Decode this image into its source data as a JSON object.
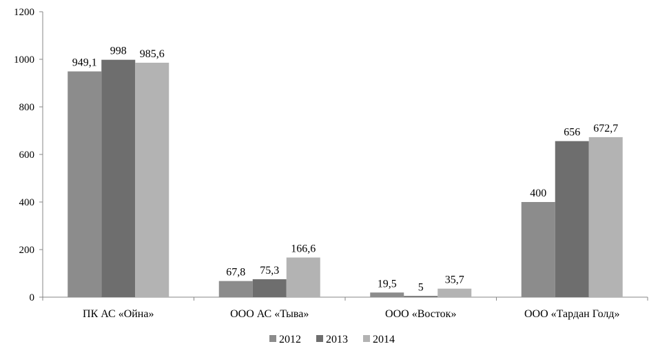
{
  "chart_data": {
    "type": "bar",
    "categories": [
      "ПК АС «Ойна»",
      "ООО АС «Тыва»",
      "ООО «Восток»",
      "ООО «Тардан Голд»"
    ],
    "series": [
      {
        "name": "2012",
        "values": [
          949.1,
          67.8,
          19.5,
          400
        ],
        "labels": [
          "949,1",
          "67,8",
          "19,5",
          "400"
        ],
        "color": "#8c8c8c"
      },
      {
        "name": "2013",
        "values": [
          998,
          75.3,
          5,
          656
        ],
        "labels": [
          "998",
          "75,3",
          "5",
          "656"
        ],
        "color": "#6e6e6e"
      },
      {
        "name": "2014",
        "values": [
          985.6,
          166.6,
          35.7,
          672.7
        ],
        "labels": [
          "985,6",
          "166,6",
          "35,7",
          "672,7"
        ],
        "color": "#b3b3b3"
      }
    ],
    "yticks": [
      "0",
      "200",
      "400",
      "600",
      "800",
      "1000",
      "1200"
    ],
    "ylim": [
      0,
      1200
    ],
    "grid": false,
    "legend": "bottom"
  }
}
